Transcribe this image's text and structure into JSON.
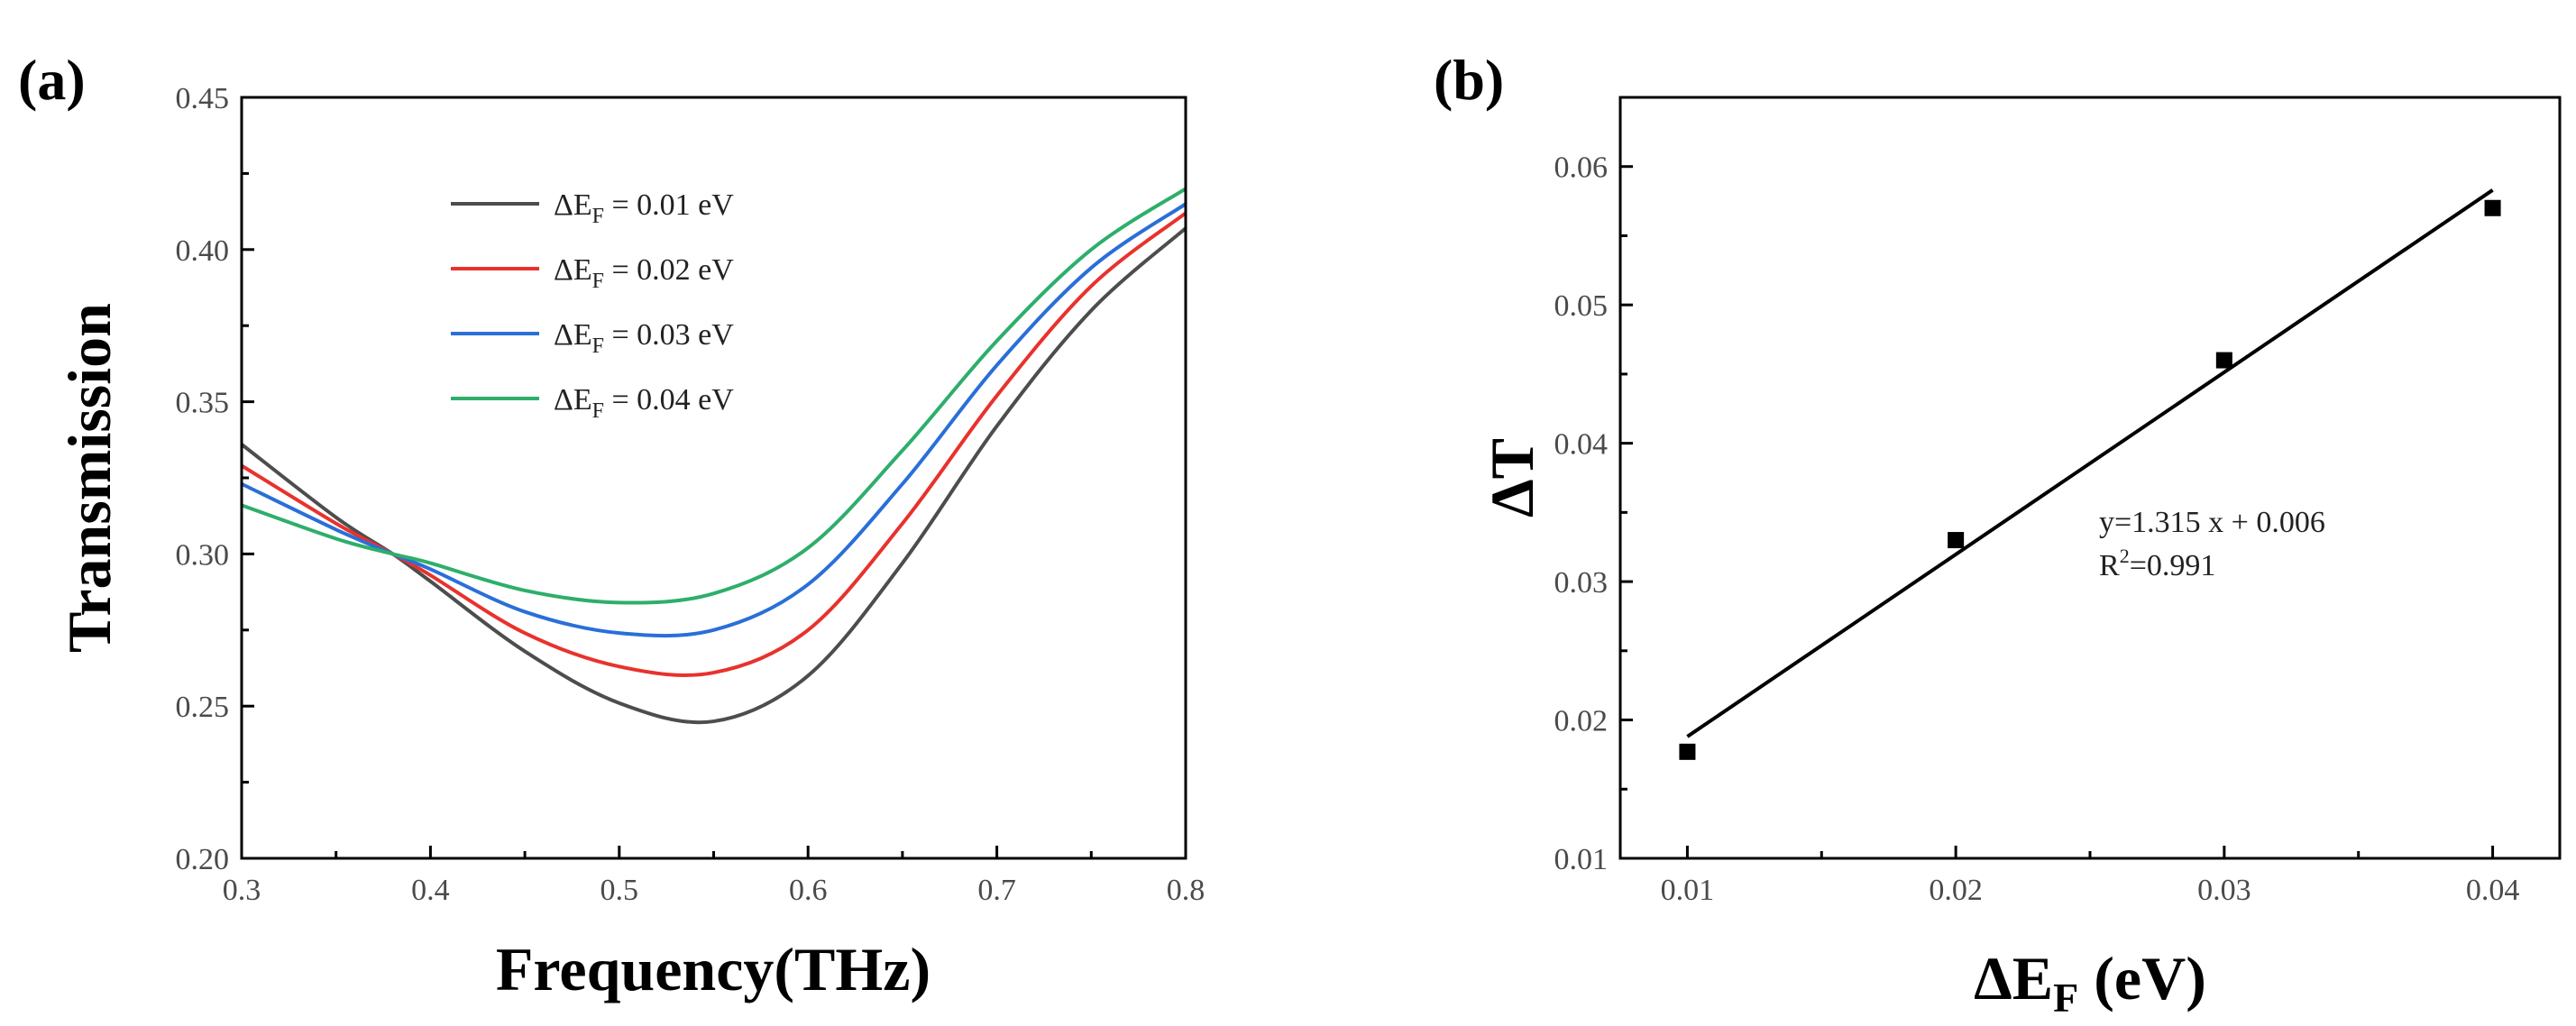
{
  "chart_data": [
    {
      "panel": "(a)",
      "type": "line",
      "title": "",
      "xlabel": "Frequency(THz)",
      "ylabel": "Transmission",
      "xlim": [
        0.3,
        0.8
      ],
      "ylim": [
        0.2,
        0.45
      ],
      "xticks": [
        "0.3",
        "0.4",
        "0.5",
        "0.6",
        "0.7",
        "0.8"
      ],
      "yticks": [
        "0.20",
        "0.25",
        "0.30",
        "0.35",
        "0.40",
        "0.45"
      ],
      "xtick_values": [
        0.3,
        0.4,
        0.5,
        0.6,
        0.7,
        0.8
      ],
      "ytick_values": [
        0.2,
        0.25,
        0.3,
        0.35,
        0.4,
        0.45
      ],
      "legend_position": "top-left",
      "x": [
        0.3,
        0.35,
        0.38,
        0.4,
        0.45,
        0.5,
        0.55,
        0.6,
        0.65,
        0.7,
        0.75,
        0.8
      ],
      "series": [
        {
          "name": "ΔE_F = 0.01 eV",
          "legend": {
            "pre": "ΔE",
            "sub": "F",
            "post": " = 0.01 eV"
          },
          "color": "#4d4d4d",
          "values": [
            0.336,
            0.312,
            0.3,
            0.291,
            0.268,
            0.251,
            0.245,
            0.26,
            0.297,
            0.342,
            0.38,
            0.407
          ]
        },
        {
          "name": "ΔE_F = 0.02 eV",
          "legend": {
            "pre": "ΔE",
            "sub": "F",
            "post": " = 0.02 eV"
          },
          "color": "#e8322d",
          "values": [
            0.329,
            0.31,
            0.3,
            0.293,
            0.274,
            0.263,
            0.261,
            0.275,
            0.31,
            0.352,
            0.388,
            0.412
          ]
        },
        {
          "name": "ΔE_F = 0.03 eV",
          "legend": {
            "pre": "ΔE",
            "sub": "F",
            "post": " = 0.03 eV"
          },
          "color": "#2a6fd8",
          "values": [
            0.323,
            0.308,
            0.3,
            0.295,
            0.281,
            0.274,
            0.275,
            0.29,
            0.323,
            0.362,
            0.394,
            0.415
          ]
        },
        {
          "name": "ΔE_F = 0.04 eV",
          "legend": {
            "pre": "ΔE",
            "sub": "F",
            "post": " = 0.04 eV"
          },
          "color": "#2eae6b",
          "values": [
            0.316,
            0.305,
            0.3,
            0.297,
            0.288,
            0.284,
            0.287,
            0.302,
            0.334,
            0.37,
            0.4,
            0.42
          ]
        }
      ]
    },
    {
      "panel": "(b)",
      "type": "scatter",
      "title": "",
      "xlabel": {
        "pre": "ΔE",
        "sub": "F",
        "post": " (eV)"
      },
      "ylabel": "ΔT",
      "xlim": [
        0.0075,
        0.0425
      ],
      "ylim": [
        0.01,
        0.065
      ],
      "xticks": [
        "0.01",
        "0.02",
        "0.03",
        "0.04"
      ],
      "yticks": [
        "0.01",
        "0.02",
        "0.03",
        "0.04",
        "0.05",
        "0.06"
      ],
      "xtick_values": [
        0.01,
        0.02,
        0.03,
        0.04
      ],
      "ytick_values": [
        0.01,
        0.02,
        0.03,
        0.04,
        0.05,
        0.06
      ],
      "points": {
        "x": [
          0.01,
          0.02,
          0.03,
          0.04
        ],
        "y": [
          0.0177,
          0.033,
          0.046,
          0.057
        ]
      },
      "fit": {
        "x": [
          0.01,
          0.04
        ],
        "y": [
          0.0188,
          0.0583
        ]
      },
      "equation": "y=1.315 x + 0.006",
      "r2": {
        "pre": "R",
        "sup": "2",
        "post": "=0.991"
      }
    }
  ]
}
